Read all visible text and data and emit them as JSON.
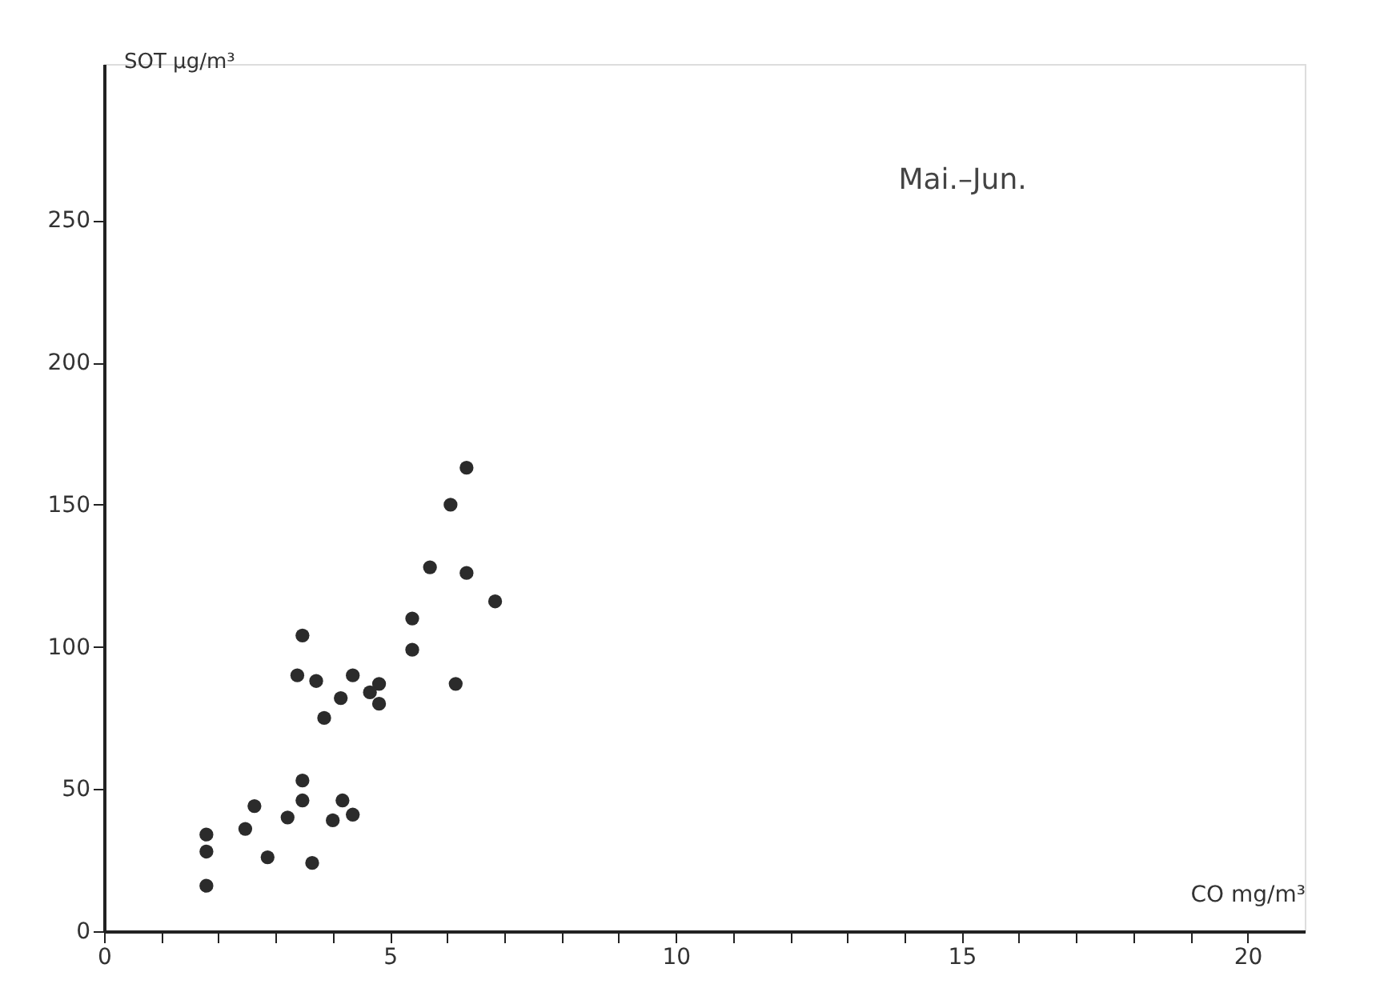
{
  "chart_data": {
    "type": "scatter",
    "xlabel": "CO mg/m³",
    "ylabel": "SOT µg/m³",
    "annotations": [
      "Mai.–Jun."
    ],
    "x": [
      1.79,
      1.79,
      1.79,
      2.47,
      2.63,
      2.86,
      3.21,
      3.47,
      3.47,
      3.64,
      4.0,
      4.17,
      4.35,
      3.85,
      3.38,
      3.71,
      4.14,
      4.35,
      4.81,
      4.81,
      4.65,
      6.15,
      3.47,
      5.39,
      5.39,
      5.7,
      6.34,
      6.84,
      6.06,
      6.34
    ],
    "series": [
      {
        "color": "#2b2b2b",
        "values": [
          16,
          28,
          34,
          36,
          44,
          26,
          40,
          46,
          53,
          24,
          39,
          46,
          41,
          75,
          90,
          88,
          82,
          90,
          87,
          80,
          84,
          87,
          104,
          110,
          99,
          128,
          126,
          116,
          150,
          163
        ]
      }
    ],
    "xlim": [
      0,
      21
    ],
    "xticks": [
      0,
      {
        "value": 1,
        "label": null
      },
      {
        "value": 2,
        "label": null
      },
      {
        "value": 3,
        "label": null
      },
      {
        "value": 4,
        "label": null
      },
      5,
      {
        "value": 6,
        "label": null
      },
      {
        "value": 7,
        "label": null
      },
      {
        "value": 8,
        "label": null
      },
      {
        "value": 9,
        "label": null
      },
      10,
      {
        "value": 11,
        "label": null
      },
      {
        "value": 12,
        "label": null
      },
      {
        "value": 13,
        "label": null
      },
      {
        "value": 14,
        "label": null
      },
      15,
      {
        "value": 16,
        "label": null
      },
      {
        "value": 17,
        "label": null
      },
      {
        "value": 18,
        "label": null
      },
      {
        "value": 19,
        "label": null
      },
      20
    ],
    "ylim": [
      0,
      305
    ],
    "yticks": [
      0,
      50,
      100,
      150,
      200,
      250
    ],
    "marker": "circle",
    "grid": false
  }
}
